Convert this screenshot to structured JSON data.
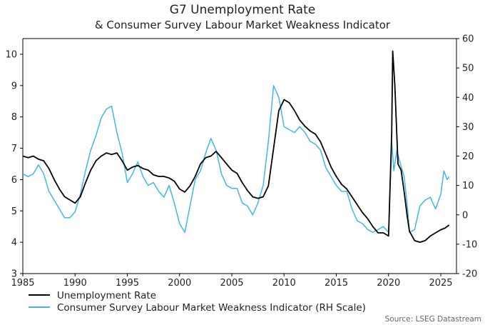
{
  "chart_data": {
    "type": "line",
    "title": "G7 Unemployment Rate",
    "subtitle": "& Consumer Survey Labour Market Weakness Indicator",
    "source": "Source: LSEG Datastream",
    "xlim": [
      1985,
      2026.5
    ],
    "ylim_left": [
      3,
      10.5
    ],
    "ylim_right": [
      -20,
      60
    ],
    "x_ticks": [
      "1985",
      "1990",
      "1995",
      "2000",
      "2005",
      "2010",
      "2015",
      "2020",
      "2025"
    ],
    "y_ticks_left": [
      "3",
      "4",
      "5",
      "6",
      "7",
      "8",
      "9",
      "10"
    ],
    "y_ticks_right": [
      "-20",
      "-10",
      "0",
      "10",
      "20",
      "30",
      "40",
      "50",
      "60"
    ],
    "grid": false,
    "legend_position": "bottom-left",
    "series": [
      {
        "name": "Unemployment Rate",
        "axis": "left",
        "color": "#000000",
        "points": [
          [
            1985.0,
            6.75
          ],
          [
            1985.5,
            6.7
          ],
          [
            1986.0,
            6.75
          ],
          [
            1986.5,
            6.65
          ],
          [
            1987.0,
            6.6
          ],
          [
            1987.5,
            6.35
          ],
          [
            1988.0,
            6.0
          ],
          [
            1988.5,
            5.7
          ],
          [
            1989.0,
            5.45
          ],
          [
            1989.5,
            5.35
          ],
          [
            1990.0,
            5.25
          ],
          [
            1990.5,
            5.45
          ],
          [
            1991.0,
            5.9
          ],
          [
            1991.5,
            6.3
          ],
          [
            1992.0,
            6.6
          ],
          [
            1992.5,
            6.75
          ],
          [
            1993.0,
            6.85
          ],
          [
            1993.5,
            6.8
          ],
          [
            1994.0,
            6.85
          ],
          [
            1994.5,
            6.6
          ],
          [
            1995.0,
            6.3
          ],
          [
            1995.5,
            6.4
          ],
          [
            1996.0,
            6.45
          ],
          [
            1996.5,
            6.35
          ],
          [
            1997.0,
            6.3
          ],
          [
            1997.5,
            6.15
          ],
          [
            1998.0,
            6.1
          ],
          [
            1998.5,
            6.1
          ],
          [
            1999.0,
            6.05
          ],
          [
            1999.5,
            5.95
          ],
          [
            2000.0,
            5.7
          ],
          [
            2000.5,
            5.6
          ],
          [
            2001.0,
            5.8
          ],
          [
            2001.5,
            6.1
          ],
          [
            2002.0,
            6.5
          ],
          [
            2002.5,
            6.7
          ],
          [
            2003.0,
            6.75
          ],
          [
            2003.5,
            6.9
          ],
          [
            2004.0,
            6.7
          ],
          [
            2004.5,
            6.5
          ],
          [
            2005.0,
            6.3
          ],
          [
            2005.5,
            6.2
          ],
          [
            2006.0,
            5.9
          ],
          [
            2006.5,
            5.65
          ],
          [
            2007.0,
            5.45
          ],
          [
            2007.5,
            5.4
          ],
          [
            2008.0,
            5.45
          ],
          [
            2008.5,
            5.8
          ],
          [
            2009.0,
            7.0
          ],
          [
            2009.5,
            8.2
          ],
          [
            2010.0,
            8.55
          ],
          [
            2010.5,
            8.45
          ],
          [
            2011.0,
            8.2
          ],
          [
            2011.5,
            7.9
          ],
          [
            2012.0,
            7.7
          ],
          [
            2012.5,
            7.55
          ],
          [
            2013.0,
            7.45
          ],
          [
            2013.5,
            7.2
          ],
          [
            2014.0,
            6.8
          ],
          [
            2014.5,
            6.4
          ],
          [
            2015.0,
            6.1
          ],
          [
            2015.5,
            5.85
          ],
          [
            2016.0,
            5.7
          ],
          [
            2016.5,
            5.45
          ],
          [
            2017.0,
            5.2
          ],
          [
            2017.5,
            4.95
          ],
          [
            2018.0,
            4.75
          ],
          [
            2018.5,
            4.5
          ],
          [
            2019.0,
            4.3
          ],
          [
            2019.5,
            4.3
          ],
          [
            2020.0,
            4.2
          ],
          [
            2020.3,
            7.5
          ],
          [
            2020.4,
            10.1
          ],
          [
            2020.6,
            9.0
          ],
          [
            2020.9,
            6.5
          ],
          [
            2021.2,
            6.3
          ],
          [
            2021.5,
            5.6
          ],
          [
            2021.8,
            4.8
          ],
          [
            2022.0,
            4.35
          ],
          [
            2022.5,
            4.05
          ],
          [
            2023.0,
            4.0
          ],
          [
            2023.5,
            4.05
          ],
          [
            2024.0,
            4.2
          ],
          [
            2024.5,
            4.3
          ],
          [
            2025.0,
            4.4
          ],
          [
            2025.4,
            4.45
          ],
          [
            2025.8,
            4.55
          ]
        ]
      },
      {
        "name": "Consumer Survey Labour Market Weakness Indicator (RH Scale)",
        "axis": "right",
        "color": "#3fb7ec",
        "points": [
          [
            1985.0,
            14
          ],
          [
            1985.5,
            13
          ],
          [
            1986.0,
            14
          ],
          [
            1986.5,
            17
          ],
          [
            1987.0,
            14
          ],
          [
            1987.5,
            8
          ],
          [
            1988.0,
            5
          ],
          [
            1988.5,
            2
          ],
          [
            1989.0,
            -1
          ],
          [
            1989.5,
            -1
          ],
          [
            1990.0,
            1
          ],
          [
            1990.5,
            7
          ],
          [
            1991.0,
            15
          ],
          [
            1991.5,
            22
          ],
          [
            1992.0,
            27
          ],
          [
            1992.5,
            33
          ],
          [
            1993.0,
            36
          ],
          [
            1993.5,
            37
          ],
          [
            1994.0,
            28
          ],
          [
            1994.5,
            21
          ],
          [
            1995.0,
            11
          ],
          [
            1995.5,
            14
          ],
          [
            1996.0,
            18
          ],
          [
            1996.5,
            13
          ],
          [
            1997.0,
            10
          ],
          [
            1997.5,
            11
          ],
          [
            1998.0,
            8
          ],
          [
            1998.5,
            6
          ],
          [
            1999.0,
            10
          ],
          [
            1999.5,
            4
          ],
          [
            2000.0,
            -3
          ],
          [
            2000.5,
            -6
          ],
          [
            2001.0,
            3
          ],
          [
            2001.5,
            12
          ],
          [
            2002.0,
            15
          ],
          [
            2002.5,
            21
          ],
          [
            2003.0,
            26
          ],
          [
            2003.5,
            22
          ],
          [
            2004.0,
            14
          ],
          [
            2004.5,
            10
          ],
          [
            2005.0,
            9
          ],
          [
            2005.5,
            9
          ],
          [
            2006.0,
            4
          ],
          [
            2006.5,
            3
          ],
          [
            2007.0,
            0
          ],
          [
            2007.5,
            4
          ],
          [
            2008.0,
            10
          ],
          [
            2008.5,
            25
          ],
          [
            2009.0,
            44
          ],
          [
            2009.5,
            40
          ],
          [
            2010.0,
            30
          ],
          [
            2010.5,
            29
          ],
          [
            2011.0,
            28
          ],
          [
            2011.5,
            30
          ],
          [
            2012.0,
            28
          ],
          [
            2012.5,
            25
          ],
          [
            2013.0,
            24
          ],
          [
            2013.5,
            22
          ],
          [
            2014.0,
            16
          ],
          [
            2014.5,
            13
          ],
          [
            2015.0,
            10
          ],
          [
            2015.5,
            8
          ],
          [
            2016.0,
            8
          ],
          [
            2016.5,
            2
          ],
          [
            2017.0,
            -2
          ],
          [
            2017.5,
            -3
          ],
          [
            2018.0,
            -5
          ],
          [
            2018.5,
            -6
          ],
          [
            2019.0,
            -5
          ],
          [
            2019.5,
            -4
          ],
          [
            2020.0,
            -6
          ],
          [
            2020.3,
            25
          ],
          [
            2020.5,
            15
          ],
          [
            2020.8,
            22
          ],
          [
            2021.0,
            19
          ],
          [
            2021.5,
            13
          ],
          [
            2021.8,
            3
          ],
          [
            2022.0,
            -6
          ],
          [
            2022.5,
            -5
          ],
          [
            2023.0,
            3
          ],
          [
            2023.5,
            5
          ],
          [
            2024.0,
            6
          ],
          [
            2024.5,
            2
          ],
          [
            2025.0,
            7
          ],
          [
            2025.3,
            15
          ],
          [
            2025.6,
            12
          ],
          [
            2025.8,
            13
          ]
        ]
      }
    ]
  }
}
